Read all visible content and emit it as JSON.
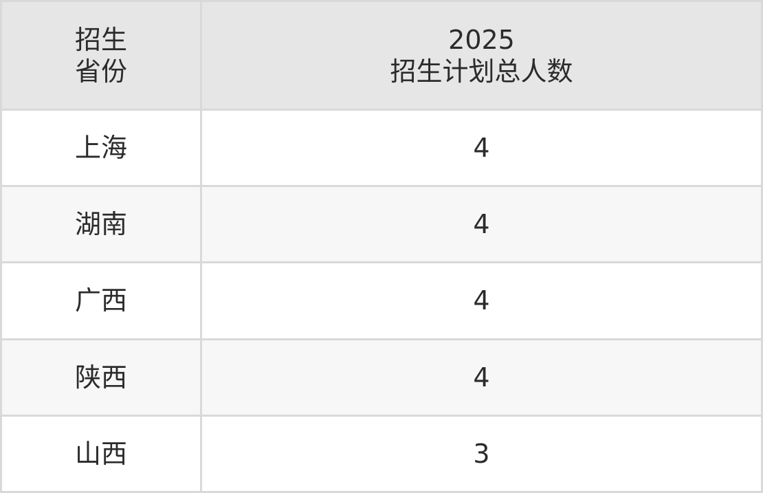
{
  "table": {
    "headers": [
      {
        "lines": [
          "招生",
          "省份"
        ]
      },
      {
        "lines": [
          "2025",
          "招生计划总人数"
        ]
      }
    ],
    "rows": [
      {
        "province": "上海",
        "total": "4"
      },
      {
        "province": "湖南",
        "total": "4"
      },
      {
        "province": "广西",
        "total": "4"
      },
      {
        "province": "陕西",
        "total": "4"
      },
      {
        "province": "山西",
        "total": "3"
      }
    ]
  },
  "colors": {
    "header_bg": "#e6e6e6",
    "alt_row_bg": "#f7f7f7",
    "border": "#d9d9d9",
    "text": "#2b2b2b"
  }
}
